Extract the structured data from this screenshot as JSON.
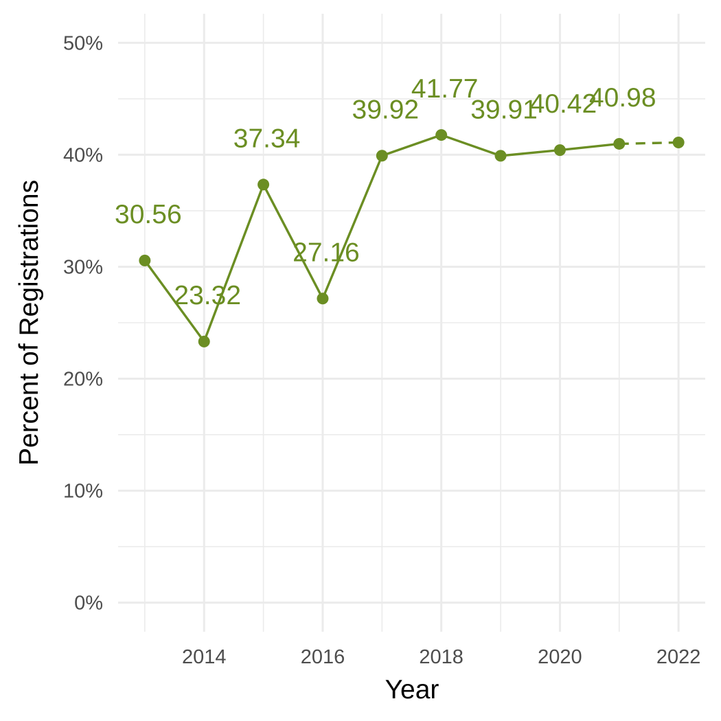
{
  "chart_data": {
    "type": "line",
    "title": "",
    "xlabel": "Year",
    "ylabel": "Percent of Registrations",
    "color": "#6b8e23",
    "x": [
      2013,
      2014,
      2015,
      2016,
      2017,
      2018,
      2019,
      2020,
      2021,
      2022
    ],
    "values": [
      30.56,
      23.32,
      37.34,
      27.16,
      39.92,
      41.77,
      39.91,
      40.42,
      40.98,
      41.1
    ],
    "data_labels": [
      "30.56",
      "23.32",
      "37.34",
      "27.16",
      "39.92",
      "41.77",
      "39.91",
      "40.42",
      "40.98",
      null
    ],
    "dashed_from_index": 8,
    "xlim": [
      2012.55,
      2022.45
    ],
    "ylim": [
      -2.6,
      52.6
    ],
    "x_ticks": [
      2014,
      2016,
      2018,
      2020,
      2022
    ],
    "x_tick_labels": [
      "2014",
      "2016",
      "2018",
      "2020",
      "2022"
    ],
    "x_minor_gridlines": [
      2013,
      2015,
      2017,
      2019,
      2021
    ],
    "y_ticks": [
      0,
      10,
      20,
      30,
      40,
      50
    ],
    "y_tick_labels": [
      "0%",
      "10%",
      "20%",
      "30%",
      "40%",
      "50%"
    ],
    "y_minor_gridlines": [
      5,
      15,
      25,
      35,
      45
    ],
    "grid": true,
    "legend": "none"
  }
}
